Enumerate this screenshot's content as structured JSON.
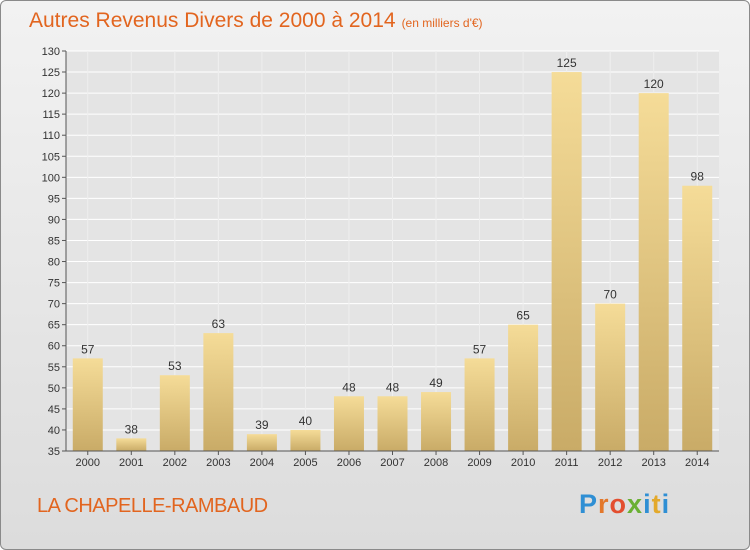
{
  "title": "Autres Revenus Divers de 2000 à 2014",
  "subtitle": "(en milliers d'€)",
  "place_name": "LA CHAPELLE-RAMBAUD",
  "logo_text": "Proxiti",
  "colors": {
    "title": "#e2651f",
    "bar_light": "#f5dc98",
    "bar_dark": "#c9ab67",
    "logo_blue": "#2f8fd4",
    "logo_orange": "#e3782b",
    "logo_green": "#6ab033"
  },
  "chart_data": {
    "type": "bar",
    "title": "Autres Revenus Divers de 2000 à 2014",
    "subtitle": "(en milliers d'€)",
    "categories": [
      "2000",
      "2001",
      "2002",
      "2003",
      "2004",
      "2005",
      "2006",
      "2007",
      "2008",
      "2009",
      "2010",
      "2011",
      "2012",
      "2013",
      "2014"
    ],
    "values": [
      57,
      38,
      53,
      63,
      39,
      40,
      48,
      48,
      49,
      57,
      65,
      125,
      70,
      120,
      98
    ],
    "ylim": [
      35,
      130
    ],
    "yticks": [
      35,
      40,
      45,
      50,
      55,
      60,
      65,
      70,
      75,
      80,
      85,
      90,
      95,
      100,
      105,
      110,
      115,
      120,
      125,
      130
    ],
    "grid": true,
    "data_labels": true
  }
}
